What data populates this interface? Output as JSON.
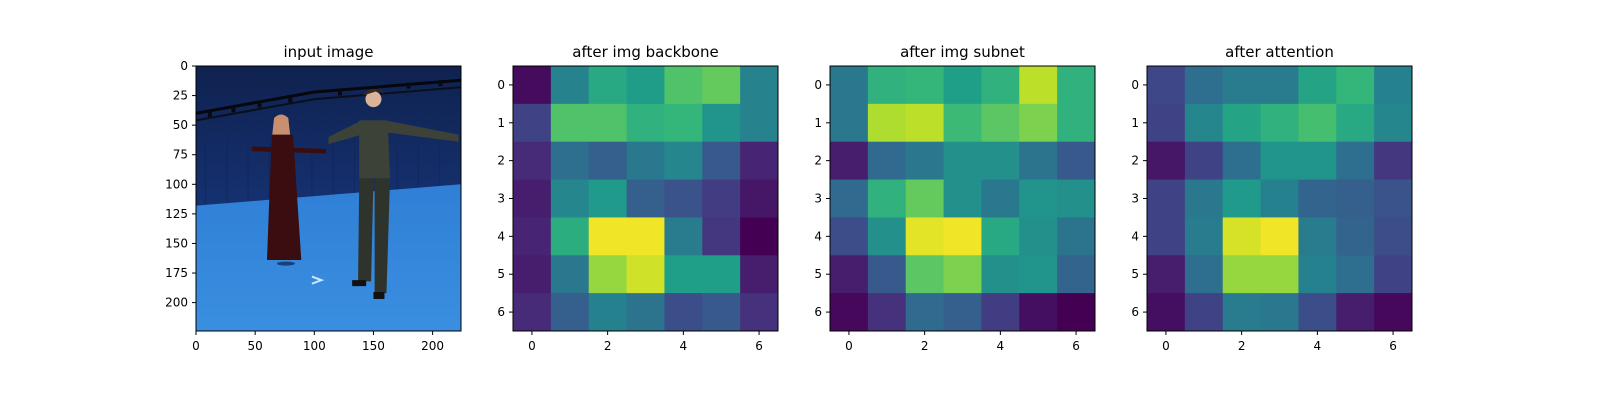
{
  "chart_data": [
    {
      "type": "image",
      "title": "input image",
      "xlim": [
        0,
        224
      ],
      "ylim": [
        224,
        0
      ],
      "xticks": [
        0,
        50,
        100,
        150,
        200
      ],
      "yticks": [
        0,
        25,
        50,
        75,
        100,
        125,
        150,
        175,
        200
      ],
      "image_description": "Two people standing in T-pose inside a blue motion-capture studio",
      "colors": {
        "wall": "#1b3f8f",
        "floor": "#3a8fe0",
        "person_left_dress": "#3a0e10",
        "person_right_suit": "#3d4238",
        "skin": "#d9b39a"
      }
    },
    {
      "type": "heatmap",
      "title": "after img backbone",
      "colormap": "viridis",
      "xticks": [
        0,
        2,
        4,
        6
      ],
      "yticks": [
        0,
        1,
        2,
        3,
        4,
        5,
        6
      ],
      "values": [
        [
          0.03,
          0.45,
          0.6,
          0.55,
          0.72,
          0.76,
          0.45
        ],
        [
          0.2,
          0.72,
          0.72,
          0.64,
          0.66,
          0.52,
          0.45
        ],
        [
          0.12,
          0.36,
          0.3,
          0.4,
          0.46,
          0.28,
          0.1
        ],
        [
          0.08,
          0.46,
          0.54,
          0.3,
          0.26,
          0.18,
          0.06
        ],
        [
          0.1,
          0.62,
          0.98,
          0.98,
          0.42,
          0.16,
          0.0
        ],
        [
          0.08,
          0.4,
          0.84,
          0.93,
          0.56,
          0.56,
          0.08
        ],
        [
          0.12,
          0.3,
          0.44,
          0.38,
          0.24,
          0.28,
          0.14
        ]
      ]
    },
    {
      "type": "heatmap",
      "title": "after img subnet",
      "colormap": "viridis",
      "xticks": [
        0,
        2,
        4,
        6
      ],
      "yticks": [
        0,
        1,
        2,
        3,
        4,
        5,
        6
      ],
      "values": [
        [
          0.4,
          0.64,
          0.66,
          0.56,
          0.64,
          0.9,
          0.64
        ],
        [
          0.4,
          0.88,
          0.9,
          0.68,
          0.74,
          0.8,
          0.64
        ],
        [
          0.08,
          0.34,
          0.4,
          0.5,
          0.5,
          0.38,
          0.28
        ],
        [
          0.34,
          0.64,
          0.76,
          0.5,
          0.4,
          0.52,
          0.5
        ],
        [
          0.24,
          0.5,
          0.96,
          0.98,
          0.6,
          0.5,
          0.38
        ],
        [
          0.08,
          0.28,
          0.74,
          0.8,
          0.5,
          0.52,
          0.32
        ],
        [
          0.02,
          0.14,
          0.34,
          0.3,
          0.18,
          0.04,
          0.0
        ]
      ]
    },
    {
      "type": "heatmap",
      "title": "after attention",
      "colormap": "viridis",
      "xticks": [
        0,
        2,
        4,
        6
      ],
      "yticks": [
        0,
        1,
        2,
        3,
        4,
        5,
        6
      ],
      "values": [
        [
          0.22,
          0.36,
          0.42,
          0.42,
          0.58,
          0.66,
          0.44
        ],
        [
          0.2,
          0.46,
          0.58,
          0.64,
          0.7,
          0.6,
          0.46
        ],
        [
          0.06,
          0.2,
          0.36,
          0.52,
          0.52,
          0.36,
          0.16
        ],
        [
          0.2,
          0.4,
          0.54,
          0.44,
          0.32,
          0.3,
          0.26
        ],
        [
          0.2,
          0.42,
          0.94,
          0.98,
          0.42,
          0.32,
          0.24
        ],
        [
          0.08,
          0.36,
          0.84,
          0.84,
          0.44,
          0.36,
          0.2
        ],
        [
          0.04,
          0.2,
          0.42,
          0.4,
          0.24,
          0.08,
          0.02
        ]
      ]
    }
  ]
}
